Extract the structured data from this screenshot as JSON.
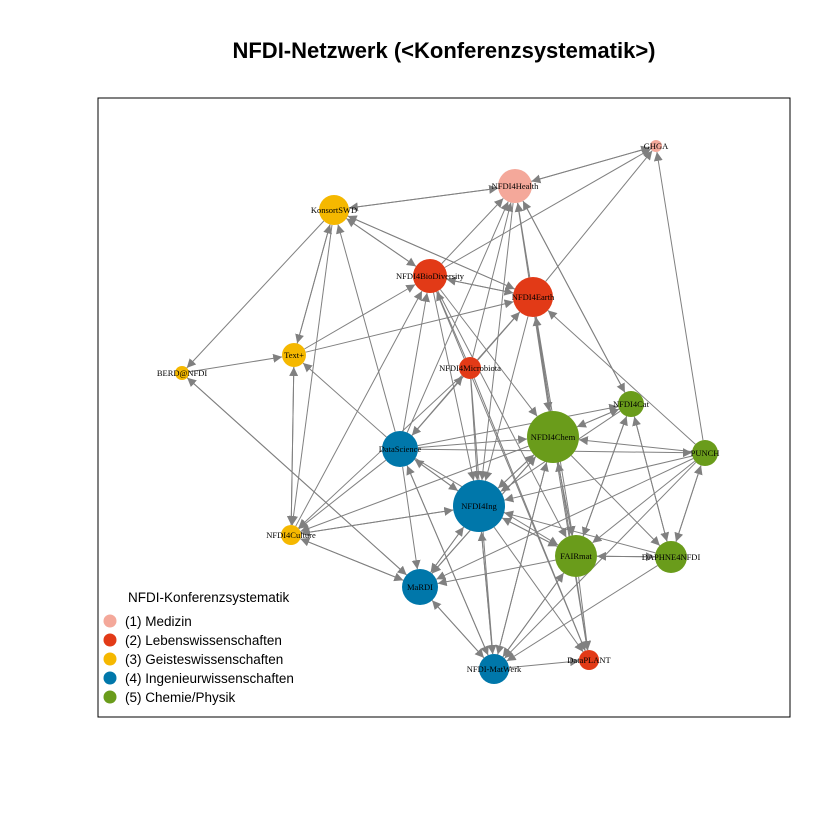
{
  "title": "NFDI-Netzwerk (<Konferenzsystematik>)",
  "colors": {
    "1": "#F4A89A",
    "2": "#E23A17",
    "3": "#F5B800",
    "4": "#0077AA",
    "5": "#6A9C1B",
    "edge": "#808080"
  },
  "legend": {
    "title": "NFDI-Konferenzsystematik",
    "items": [
      {
        "cat": "1",
        "label": "(1) Medizin"
      },
      {
        "cat": "2",
        "label": "(2) Lebenswissenschaften"
      },
      {
        "cat": "3",
        "label": "(3) Geisteswissenschaften"
      },
      {
        "cat": "4",
        "label": "(4) Ingenieurwissenschaften"
      },
      {
        "cat": "5",
        "label": "(5) Chemie/Physik"
      }
    ]
  },
  "nodes": [
    {
      "id": "GHGA",
      "label": "GHGA",
      "cat": "1"
    },
    {
      "id": "NFDI4Health",
      "label": "NFDI4Health",
      "cat": "1"
    },
    {
      "id": "KonsortSWD",
      "label": "KonsortSWD",
      "cat": "3"
    },
    {
      "id": "NFDI4BioDiversity",
      "label": "NFDI4BioDiversity",
      "cat": "2"
    },
    {
      "id": "NFDI4Earth",
      "label": "NFDI4Earth",
      "cat": "2"
    },
    {
      "id": "Text+",
      "label": "Text+",
      "cat": "3"
    },
    {
      "id": "BERD@NFDI",
      "label": "BERD@NFDI",
      "cat": "3"
    },
    {
      "id": "NFDI4Microbiota",
      "label": "NFDI4Microbiota",
      "cat": "2"
    },
    {
      "id": "NFDI4Cat",
      "label": "NFDI4Cat",
      "cat": "5"
    },
    {
      "id": "NFDI4Chem",
      "label": "NFDI4Chem",
      "cat": "5"
    },
    {
      "id": "DataScience",
      "label": "DataScience",
      "cat": "4"
    },
    {
      "id": "PUNCH",
      "label": "PUNCH",
      "cat": "5"
    },
    {
      "id": "NFDI4Ing",
      "label": "NFDI4Ing",
      "cat": "4"
    },
    {
      "id": "NFDI4Culture",
      "label": "NFDI4Culture",
      "cat": "3"
    },
    {
      "id": "FAIRmat",
      "label": "FAIRmat",
      "cat": "5"
    },
    {
      "id": "DAPHNE4NFDI",
      "label": "DAPHNE4NFDI",
      "cat": "5"
    },
    {
      "id": "MaRDI",
      "label": "MaRDI",
      "cat": "4"
    },
    {
      "id": "DataPLANT",
      "label": "DataPLANT",
      "cat": "2"
    },
    {
      "id": "NFDI-MatWerk",
      "label": "NFDI-MatWerk",
      "cat": "4"
    }
  ],
  "edges": [
    [
      "KonsortSWD",
      "NFDI4Health"
    ],
    [
      "NFDI4Health",
      "KonsortSWD"
    ],
    [
      "NFDI4Health",
      "GHGA"
    ],
    [
      "GHGA",
      "NFDI4Health"
    ],
    [
      "KonsortSWD",
      "NFDI4BioDiversity"
    ],
    [
      "NFDI4BioDiversity",
      "KonsortSWD"
    ],
    [
      "KonsortSWD",
      "NFDI4Earth"
    ],
    [
      "NFDI4Earth",
      "KonsortSWD"
    ],
    [
      "KonsortSWD",
      "Text+"
    ],
    [
      "Text+",
      "KonsortSWD"
    ],
    [
      "KonsortSWD",
      "BERD@NFDI"
    ],
    [
      "KonsortSWD",
      "NFDI4Culture"
    ],
    [
      "NFDI4BioDiversity",
      "NFDI4Earth"
    ],
    [
      "NFDI4Earth",
      "NFDI4BioDiversity"
    ],
    [
      "NFDI4BioDiversity",
      "NFDI4Health"
    ],
    [
      "NFDI4Earth",
      "NFDI4Health"
    ],
    [
      "NFDI4Earth",
      "GHGA"
    ],
    [
      "NFDI4BioDiversity",
      "GHGA"
    ],
    [
      "BERD@NFDI",
      "Text+"
    ],
    [
      "Text+",
      "NFDI4BioDiversity"
    ],
    [
      "Text+",
      "NFDI4Earth"
    ],
    [
      "Text+",
      "NFDI4Culture"
    ],
    [
      "NFDI4Culture",
      "Text+"
    ],
    [
      "DataScience",
      "Text+"
    ],
    [
      "DataScience",
      "KonsortSWD"
    ],
    [
      "DataScience",
      "NFDI4BioDiversity"
    ],
    [
      "DataScience",
      "NFDI4Health"
    ],
    [
      "DataScience",
      "NFDI4Microbiota"
    ],
    [
      "DataScience",
      "NFDI4Chem"
    ],
    [
      "DataScience",
      "NFDI4Cat"
    ],
    [
      "DataScience",
      "NFDI4Ing"
    ],
    [
      "NFDI4Ing",
      "DataScience"
    ],
    [
      "DataScience",
      "MaRDI"
    ],
    [
      "DataScience",
      "NFDI-MatWerk"
    ],
    [
      "DataScience",
      "FAIRmat"
    ],
    [
      "DataScience",
      "NFDI4Culture"
    ],
    [
      "DataScience",
      "PUNCH"
    ],
    [
      "NFDI4Earth",
      "DataScience"
    ],
    [
      "NFDI4Microbiota",
      "NFDI4Health"
    ],
    [
      "NFDI4Microbiota",
      "NFDI4BioDiversity"
    ],
    [
      "NFDI4Microbiota",
      "NFDI4Earth"
    ],
    [
      "NFDI4Microbiota",
      "NFDI4Ing"
    ],
    [
      "NFDI4Microbiota",
      "DataPLANT"
    ],
    [
      "NFDI4Microbiota",
      "NFDI4Culture"
    ],
    [
      "NFDI4Microbiota",
      "NFDI-MatWerk"
    ],
    [
      "NFDI4BioDiversity",
      "NFDI4Chem"
    ],
    [
      "NFDI4BioDiversity",
      "DataPLANT"
    ],
    [
      "NFDI4BioDiversity",
      "FAIRmat"
    ],
    [
      "NFDI4BioDiversity",
      "NFDI4Ing"
    ],
    [
      "NFDI4Earth",
      "NFDI4Chem"
    ],
    [
      "NFDI4Chem",
      "NFDI4Earth"
    ],
    [
      "NFDI4Earth",
      "FAIRmat"
    ],
    [
      "NFDI4Earth",
      "DataPLANT"
    ],
    [
      "NFDI4Earth",
      "NFDI4Ing"
    ],
    [
      "NFDI4Health",
      "NFDI4Ing"
    ],
    [
      "NFDI4Health",
      "NFDI4Chem"
    ],
    [
      "NFDI4Health",
      "NFDI4Cat"
    ],
    [
      "PUNCH",
      "NFDI4Earth"
    ],
    [
      "PUNCH",
      "GHGA"
    ],
    [
      "PUNCH",
      "NFDI4Chem"
    ],
    [
      "PUNCH",
      "NFDI4Ing"
    ],
    [
      "PUNCH",
      "MaRDI"
    ],
    [
      "PUNCH",
      "FAIRmat"
    ],
    [
      "PUNCH",
      "DAPHNE4NFDI"
    ],
    [
      "PUNCH",
      "NFDI-MatWerk"
    ],
    [
      "NFDI4Chem",
      "NFDI4Cat"
    ],
    [
      "NFDI4Cat",
      "NFDI4Chem"
    ],
    [
      "NFDI4Chem",
      "FAIRmat"
    ],
    [
      "FAIRmat",
      "NFDI4Chem"
    ],
    [
      "NFDI4Chem",
      "NFDI4Ing"
    ],
    [
      "NFDI4Ing",
      "NFDI4Chem"
    ],
    [
      "NFDI4Chem",
      "DAPHNE4NFDI"
    ],
    [
      "NFDI4Chem",
      "DataPLANT"
    ],
    [
      "NFDI4Chem",
      "NFDI-MatWerk"
    ],
    [
      "NFDI4Chem",
      "MaRDI"
    ],
    [
      "NFDI4Chem",
      "NFDI4Culture"
    ],
    [
      "NFDI4Cat",
      "FAIRmat"
    ],
    [
      "FAIRmat",
      "NFDI4Cat"
    ],
    [
      "NFDI4Cat",
      "NFDI4Ing"
    ],
    [
      "NFDI4Cat",
      "DAPHNE4NFDI"
    ],
    [
      "DAPHNE4NFDI",
      "NFDI4Cat"
    ],
    [
      "NFDI4Cat",
      "NFDI4Health"
    ],
    [
      "FAIRmat",
      "NFDI4Ing"
    ],
    [
      "NFDI4Ing",
      "FAIRmat"
    ],
    [
      "FAIRmat",
      "DAPHNE4NFDI"
    ],
    [
      "DAPHNE4NFDI",
      "FAIRmat"
    ],
    [
      "FAIRmat",
      "MaRDI"
    ],
    [
      "FAIRmat",
      "NFDI-MatWerk"
    ],
    [
      "NFDI-MatWerk",
      "FAIRmat"
    ],
    [
      "FAIRmat",
      "DataPLANT"
    ],
    [
      "DAPHNE4NFDI",
      "NFDI4Ing"
    ],
    [
      "DAPHNE4NFDI",
      "NFDI-MatWerk"
    ],
    [
      "DAPHNE4NFDI",
      "PUNCH"
    ],
    [
      "NFDI4Ing",
      "MaRDI"
    ],
    [
      "MaRDI",
      "NFDI4Ing"
    ],
    [
      "NFDI4Ing",
      "NFDI-MatWerk"
    ],
    [
      "NFDI-MatWerk",
      "NFDI4Ing"
    ],
    [
      "NFDI4Ing",
      "NFDI4Culture"
    ],
    [
      "NFDI4Culture",
      "NFDI4Ing"
    ],
    [
      "NFDI4Ing",
      "DataPLANT"
    ],
    [
      "MaRDI",
      "NFDI-MatWerk"
    ],
    [
      "NFDI-MatWerk",
      "MaRDI"
    ],
    [
      "MaRDI",
      "NFDI4Culture"
    ],
    [
      "NFDI4Culture",
      "MaRDI"
    ],
    [
      "MaRDI",
      "BERD@NFDI"
    ],
    [
      "BERD@NFDI",
      "MaRDI"
    ],
    [
      "NFDI-MatWerk",
      "DataPLANT"
    ],
    [
      "NFDI-MatWerk",
      "NFDI4Chem"
    ],
    [
      "NFDI-MatWerk",
      "DataScience"
    ],
    [
      "MaRDI",
      "NFDI4Chem"
    ],
    [
      "NFDI4Culture",
      "NFDI4BioDiversity"
    ]
  ]
}
